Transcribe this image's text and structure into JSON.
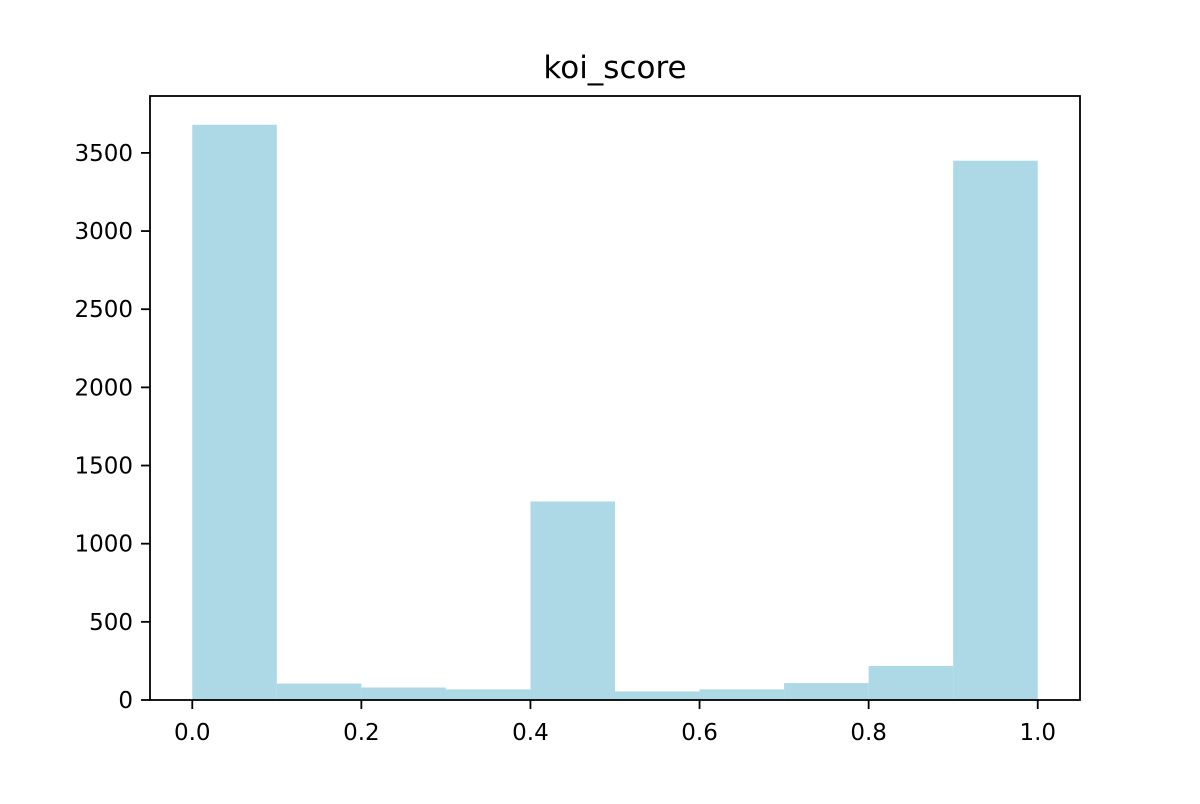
{
  "chart_data": {
    "type": "bar",
    "title": "koi_score",
    "xlabel": "",
    "ylabel": "",
    "bar_color": "#add8e6",
    "bins": [
      {
        "x0": 0.0,
        "x1": 0.1,
        "count": 3680
      },
      {
        "x0": 0.1,
        "x1": 0.2,
        "count": 105
      },
      {
        "x0": 0.2,
        "x1": 0.3,
        "count": 80
      },
      {
        "x0": 0.3,
        "x1": 0.4,
        "count": 68
      },
      {
        "x0": 0.4,
        "x1": 0.5,
        "count": 1270
      },
      {
        "x0": 0.5,
        "x1": 0.6,
        "count": 55
      },
      {
        "x0": 0.6,
        "x1": 0.7,
        "count": 68
      },
      {
        "x0": 0.7,
        "x1": 0.8,
        "count": 108
      },
      {
        "x0": 0.8,
        "x1": 0.9,
        "count": 218
      },
      {
        "x0": 0.9,
        "x1": 1.0,
        "count": 3450
      }
    ],
    "xlim": [
      -0.05,
      1.05
    ],
    "ylim": [
      0,
      3864
    ],
    "xticks": [
      0.0,
      0.2,
      0.4,
      0.6,
      0.8,
      1.0
    ],
    "xtick_labels": [
      "0.0",
      "0.2",
      "0.4",
      "0.6",
      "0.8",
      "1.0"
    ],
    "yticks": [
      0,
      500,
      1000,
      1500,
      2000,
      2500,
      3000,
      3500
    ],
    "ytick_labels": [
      "0",
      "500",
      "1000",
      "1500",
      "2000",
      "2500",
      "3000",
      "3500"
    ],
    "grid": false,
    "legend": false
  }
}
